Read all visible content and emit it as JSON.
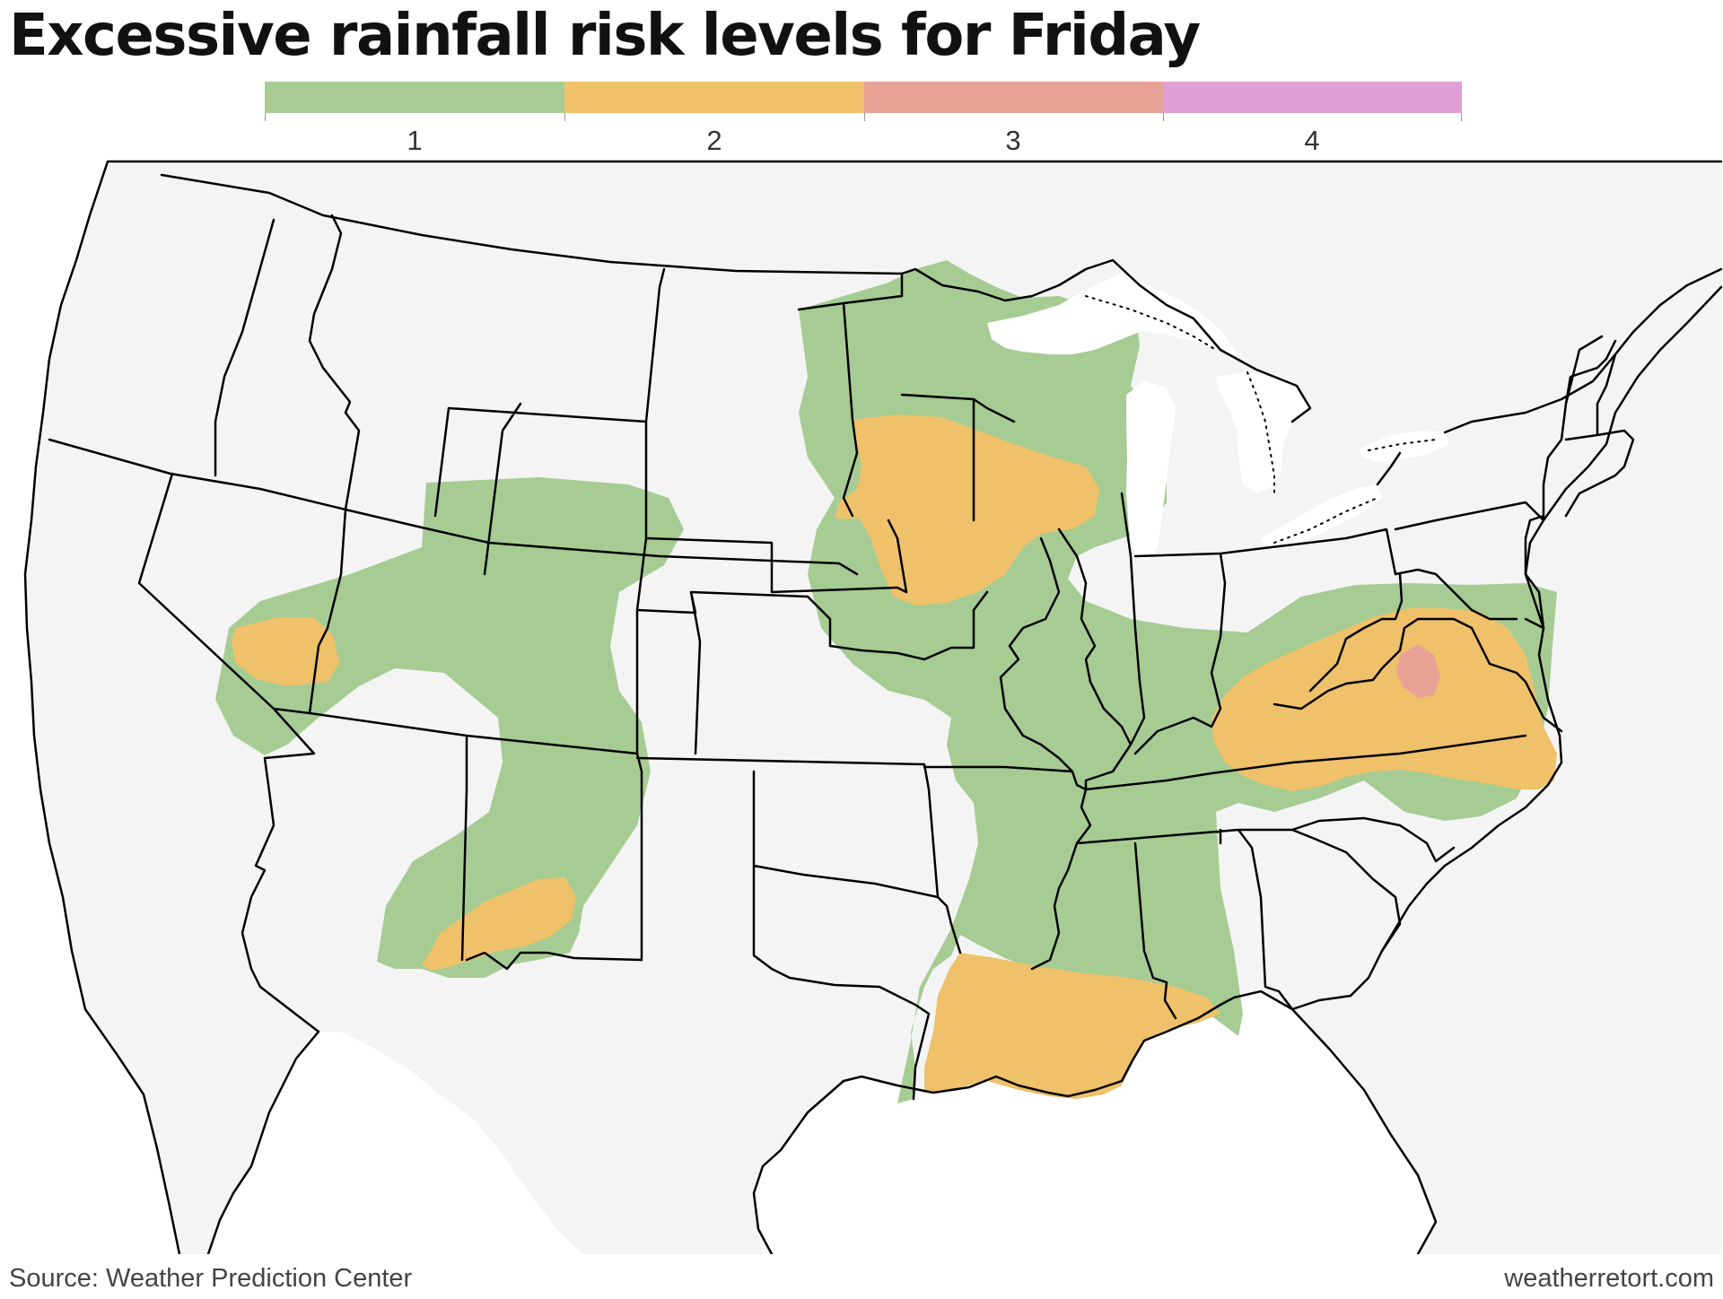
{
  "title": "Excessive rainfall risk levels for Friday",
  "legend": {
    "levels": [
      {
        "label": "1",
        "color": "#a6cc94"
      },
      {
        "label": "2",
        "color": "#efc16a"
      },
      {
        "label": "3",
        "color": "#e8a296"
      },
      {
        "label": "4",
        "color": "#e09fd6"
      }
    ]
  },
  "map": {
    "land_color": "#f4f4f4",
    "border_color": "#000000"
  },
  "footer": {
    "source": "Source: Weather Prediction Center",
    "credit": "weatherretort.com"
  }
}
